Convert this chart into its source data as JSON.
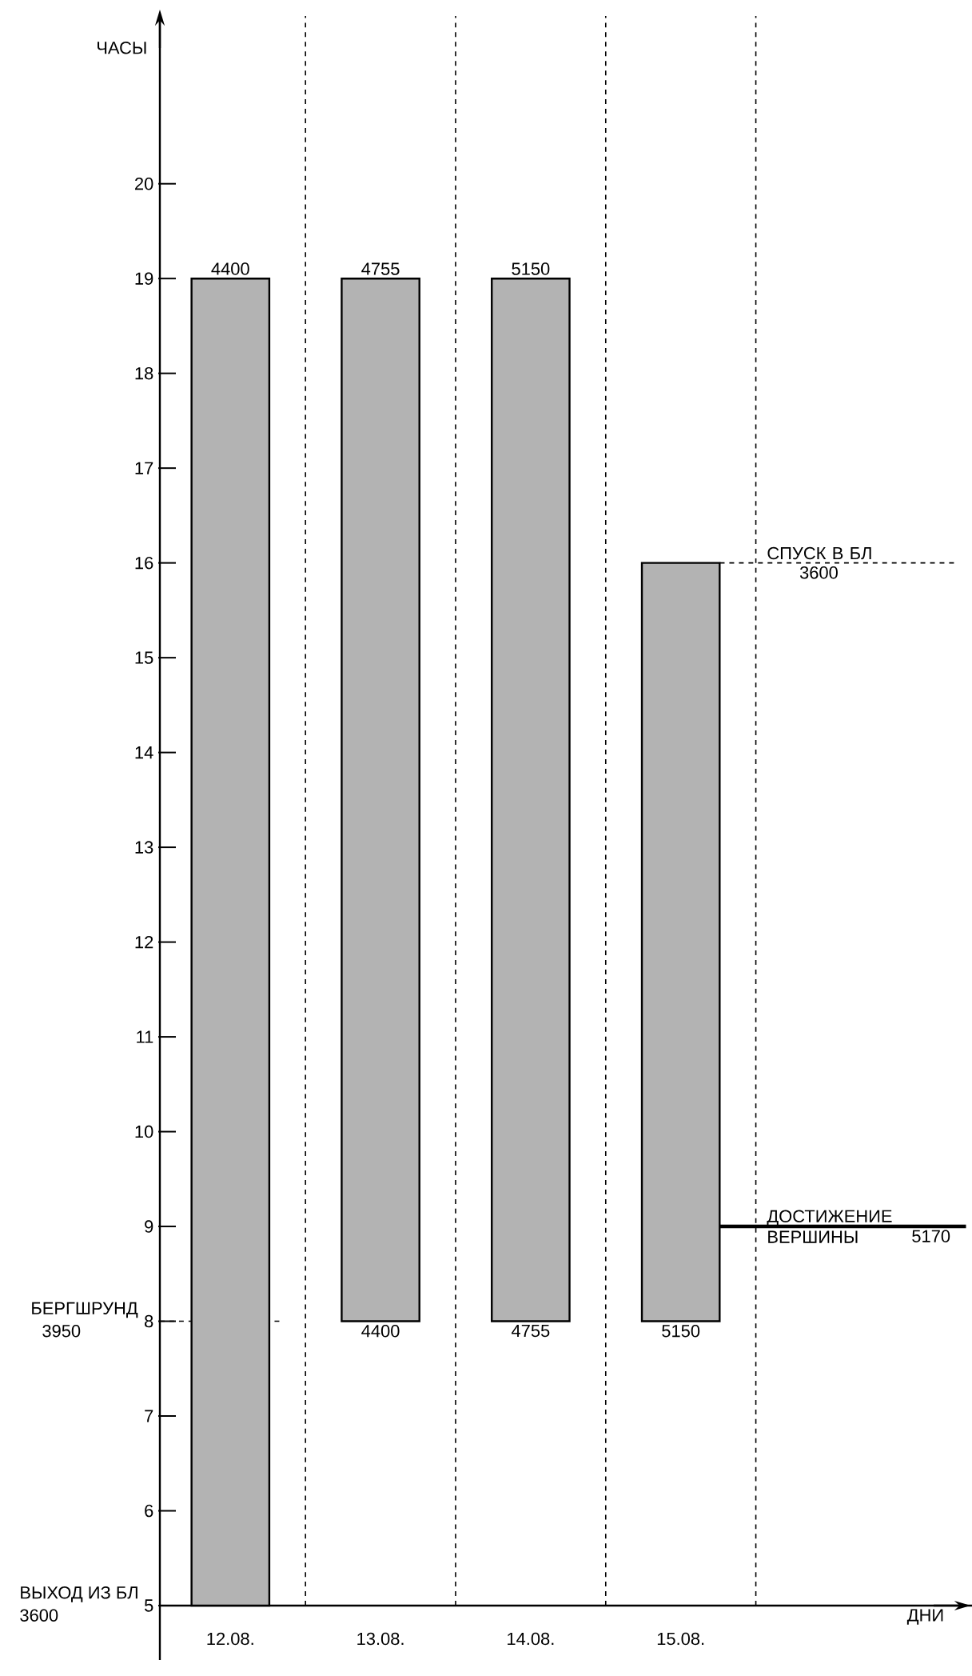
{
  "chart_data": {
    "type": "bar",
    "ylabel": "ЧАСЫ",
    "categories": [
      "12.08.",
      "13.08.",
      "14.08.",
      "15.08."
    ],
    "base": [
      5,
      8,
      8,
      8
    ],
    "values": [
      14,
      11,
      11,
      8
    ],
    "color": "#b3b3b3",
    "ylim": [
      5,
      21.77
    ],
    "yticks": [
      5,
      6,
      7,
      8,
      9,
      10,
      11,
      12,
      13,
      14,
      15,
      16,
      17,
      18,
      19,
      20
    ],
    "grid": "x",
    "annotations": [
      {
        "text": "4400",
        "x": "12.08.",
        "y": 19
      },
      {
        "text": "4755",
        "x": "13.08.",
        "y": 19
      },
      {
        "text": "5150",
        "x": "14.08.",
        "y": 19
      },
      {
        "text": "4400",
        "x": "13.08.",
        "y": 8
      },
      {
        "text": "4755",
        "x": "14.08.",
        "y": 8
      },
      {
        "text": "5150",
        "x": "15.08.",
        "y": 8
      },
      "3600",
      "5170",
      "3950",
      "ВЫХОД ИЗ БЛ",
      "3600",
      "ДНИ"
    ],
    "ref_lines": [
      {
        "axis": "y",
        "value": 16,
        "label": "СПУСК В БЛ",
        "line_style": "dashed"
      },
      {
        "axis": "y",
        "value": 9,
        "label": "ДОСТИЖЕНИЕ ВЕРШИНЫ",
        "line_style": "solid"
      },
      {
        "axis": "y",
        "value": 8,
        "label": "БЕРГШРУНД",
        "line_style": "dashed"
      }
    ]
  }
}
